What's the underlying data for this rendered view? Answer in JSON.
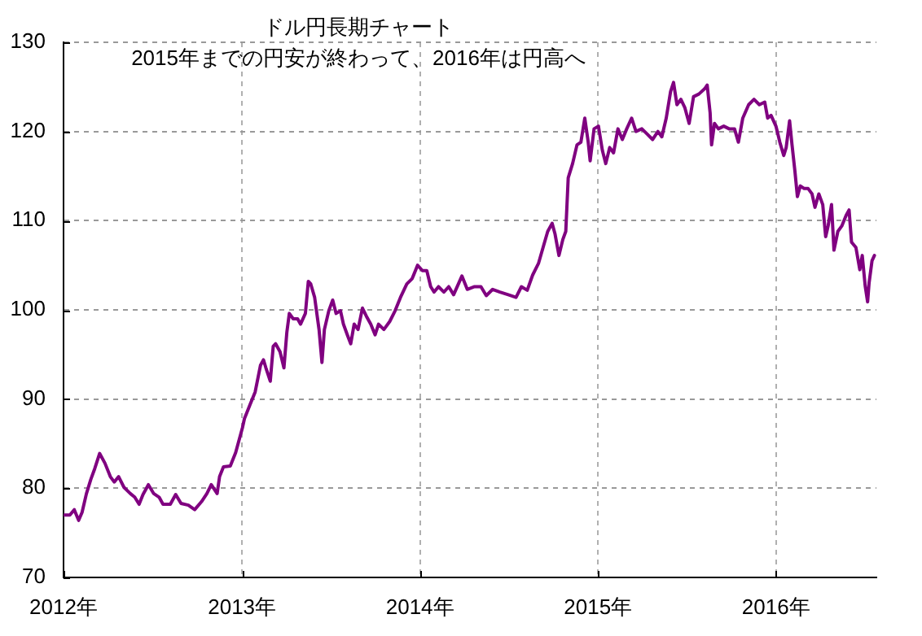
{
  "chart_data": {
    "type": "line",
    "title": "ドル円長期チャート",
    "subtitle": "2015年までの円安が終わって、2016年は円高へ",
    "x": [
      "2012-01-02",
      "2012-01-14",
      "2012-01-23",
      "2012-02-01",
      "2012-02-08",
      "2012-02-17",
      "2012-02-26",
      "2012-03-05",
      "2012-03-15",
      "2012-03-26",
      "2012-04-06",
      "2012-04-14",
      "2012-04-23",
      "2012-05-04",
      "2012-05-17",
      "2012-05-26",
      "2012-06-04",
      "2012-06-12",
      "2012-06-23",
      "2012-07-04",
      "2012-07-15",
      "2012-07-23",
      "2012-08-07",
      "2012-08-18",
      "2012-08-29",
      "2012-09-13",
      "2012-09-26",
      "2012-10-10",
      "2012-10-21",
      "2012-10-30",
      "2012-11-11",
      "2012-11-16",
      "2012-11-24",
      "2012-12-08",
      "2012-12-19",
      "2013-01-02",
      "2013-01-06",
      "2013-01-17",
      "2013-01-28",
      "2013-02-08",
      "2013-02-14",
      "2013-02-19",
      "2013-02-28",
      "2013-03-06",
      "2013-03-11",
      "2013-03-20",
      "2013-03-28",
      "2013-04-03",
      "2013-04-08",
      "2013-04-16",
      "2013-04-25",
      "2013-05-01",
      "2013-05-11",
      "2013-05-17",
      "2013-05-22",
      "2013-05-30",
      "2013-06-08",
      "2013-06-14",
      "2013-06-19",
      "2013-06-28",
      "2013-07-06",
      "2013-07-13",
      "2013-07-22",
      "2013-07-28",
      "2013-08-05",
      "2013-08-12",
      "2013-08-19",
      "2013-08-27",
      "2013-09-05",
      "2013-09-13",
      "2013-09-22",
      "2013-10-01",
      "2013-10-08",
      "2013-10-19",
      "2013-10-31",
      "2013-11-11",
      "2013-11-22",
      "2013-12-05",
      "2013-12-16",
      "2013-12-27",
      "2014-01-06",
      "2014-01-15",
      "2014-01-23",
      "2014-01-30",
      "2014-02-08",
      "2014-02-19",
      "2014-03-01",
      "2014-03-11",
      "2014-03-28",
      "2014-04-08",
      "2014-04-23",
      "2014-05-06",
      "2014-05-17",
      "2014-05-30",
      "2014-06-14",
      "2014-07-01",
      "2014-07-17",
      "2014-07-28",
      "2014-08-09",
      "2014-08-20",
      "2014-09-01",
      "2014-09-12",
      "2014-09-20",
      "2014-09-29",
      "2014-10-05",
      "2014-10-13",
      "2014-10-21",
      "2014-10-27",
      "2014-11-01",
      "2014-11-10",
      "2014-11-19",
      "2014-11-27",
      "2014-12-05",
      "2014-12-12",
      "2014-12-16",
      "2014-12-24",
      "2015-01-02",
      "2015-01-10",
      "2015-01-17",
      "2015-01-25",
      "2015-02-02",
      "2015-02-11",
      "2015-02-20",
      "2015-03-01",
      "2015-03-11",
      "2015-03-20",
      "2015-04-01",
      "2015-04-12",
      "2015-04-23",
      "2015-05-04",
      "2015-05-12",
      "2015-05-21",
      "2015-05-30",
      "2015-06-05",
      "2015-06-12",
      "2015-06-20",
      "2015-06-28",
      "2015-07-07",
      "2015-07-16",
      "2015-07-27",
      "2015-08-08",
      "2015-08-13",
      "2015-08-19",
      "2015-08-22",
      "2015-08-28",
      "2015-09-05",
      "2015-09-16",
      "2015-09-27",
      "2015-10-08",
      "2015-10-16",
      "2015-10-25",
      "2015-11-06",
      "2015-11-17",
      "2015-11-28",
      "2015-12-09",
      "2015-12-15",
      "2015-12-22",
      "2016-01-01",
      "2016-01-09",
      "2016-01-17",
      "2016-01-22",
      "2016-01-29",
      "2016-02-03",
      "2016-02-09",
      "2016-02-14",
      "2016-02-20",
      "2016-02-28",
      "2016-03-07",
      "2016-03-15",
      "2016-03-21",
      "2016-03-29",
      "2016-04-06",
      "2016-04-12",
      "2016-04-17",
      "2016-04-24",
      "2016-04-29",
      "2016-05-07",
      "2016-05-15",
      "2016-05-24",
      "2016-05-30",
      "2016-06-04",
      "2016-06-13",
      "2016-06-21",
      "2016-06-26",
      "2016-07-02",
      "2016-07-07",
      "2016-07-10",
      "2016-07-16",
      "2016-07-21"
    ],
    "values": [
      77.0,
      77.0,
      77.6,
      76.4,
      77.3,
      79.4,
      81.0,
      82.2,
      83.9,
      82.8,
      81.3,
      80.7,
      81.3,
      80.1,
      79.4,
      79.0,
      78.2,
      79.3,
      80.4,
      79.4,
      79.0,
      78.2,
      78.2,
      79.3,
      78.3,
      78.1,
      77.6,
      78.5,
      79.4,
      80.4,
      79.4,
      81.3,
      82.4,
      82.5,
      84.0,
      86.8,
      87.8,
      89.3,
      90.8,
      93.8,
      94.4,
      93.5,
      92.0,
      95.9,
      96.2,
      95.3,
      93.5,
      97.5,
      99.6,
      99.0,
      99.0,
      98.4,
      99.6,
      103.2,
      102.9,
      101.4,
      97.8,
      94.1,
      97.8,
      99.9,
      101.1,
      99.6,
      99.9,
      98.4,
      97.2,
      96.2,
      98.4,
      97.8,
      100.2,
      99.3,
      98.4,
      97.2,
      98.4,
      97.8,
      98.7,
      99.9,
      101.4,
      102.9,
      103.5,
      105.0,
      104.4,
      104.4,
      102.6,
      102.0,
      102.6,
      102.0,
      102.6,
      101.7,
      103.8,
      102.3,
      102.6,
      102.6,
      101.6,
      102.3,
      102.0,
      101.7,
      101.4,
      102.6,
      102.2,
      103.9,
      105.2,
      107.3,
      108.8,
      109.7,
      108.5,
      106.1,
      107.9,
      108.8,
      114.8,
      116.4,
      118.5,
      118.8,
      121.5,
      118.8,
      116.7,
      120.3,
      120.6,
      117.9,
      116.4,
      118.2,
      117.6,
      120.3,
      119.1,
      120.3,
      121.5,
      120.0,
      120.3,
      119.7,
      119.1,
      120.0,
      119.4,
      121.5,
      124.5,
      125.5,
      123.0,
      123.6,
      122.7,
      120.9,
      123.9,
      124.2,
      124.8,
      125.2,
      122.1,
      118.5,
      120.9,
      120.3,
      120.6,
      120.3,
      120.3,
      118.8,
      121.5,
      123.0,
      123.6,
      123.0,
      123.3,
      121.5,
      121.8,
      120.6,
      118.8,
      117.3,
      118.2,
      121.2,
      118.5,
      115.5,
      112.7,
      113.9,
      113.6,
      113.6,
      113.0,
      111.5,
      113.0,
      111.8,
      108.2,
      109.4,
      111.8,
      106.7,
      108.8,
      109.4,
      110.6,
      111.2,
      107.6,
      107.0,
      104.5,
      106.1,
      102.7,
      100.9,
      103.0,
      105.5,
      106.1
    ],
    "color": "#800080",
    "xlim": [
      "2012-01-01",
      "2016-07-25"
    ],
    "xticks": [
      {
        "value": "2012",
        "label": "2012年"
      },
      {
        "value": "2013",
        "label": "2013年"
      },
      {
        "value": "2014",
        "label": "2014年"
      },
      {
        "value": "2015",
        "label": "2015年"
      },
      {
        "value": "2016",
        "label": "2016年"
      }
    ],
    "ylim": [
      70,
      130
    ],
    "yticks": [
      70,
      80,
      90,
      100,
      110,
      120,
      130
    ],
    "grid": true
  }
}
